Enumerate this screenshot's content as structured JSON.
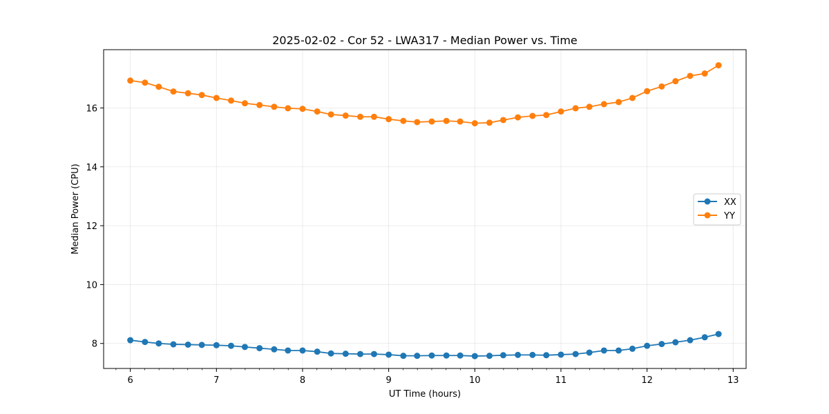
{
  "chart_data": {
    "type": "line",
    "title": "2025-02-02 - Cor 52 - LWA317 - Median Power vs. Time",
    "xlabel": "UT Time (hours)",
    "ylabel": "Median Power (CPU)",
    "xlim": [
      5.69,
      13.15
    ],
    "ylim": [
      7.15,
      17.98
    ],
    "xticks": [
      6,
      7,
      8,
      9,
      10,
      11,
      12,
      13
    ],
    "xtick_labels": [
      "6",
      "7",
      "8",
      "9",
      "10",
      "11",
      "12",
      "13"
    ],
    "yticks": [
      8,
      10,
      12,
      14,
      16
    ],
    "ytick_labels": [
      "8",
      "10",
      "12",
      "14",
      "16"
    ],
    "grid": true,
    "legend_position": "center-right",
    "x": [
      6.0,
      6.17,
      6.33,
      6.5,
      6.67,
      6.83,
      7.0,
      7.17,
      7.33,
      7.5,
      7.67,
      7.83,
      8.0,
      8.17,
      8.33,
      8.5,
      8.67,
      8.83,
      9.0,
      9.17,
      9.33,
      9.5,
      9.67,
      9.83,
      10.0,
      10.17,
      10.33,
      10.5,
      10.67,
      10.83,
      11.0,
      11.17,
      11.33,
      11.5,
      11.67,
      11.83,
      12.0,
      12.17,
      12.33,
      12.5,
      12.67,
      12.83
    ],
    "series": [
      {
        "name": "XX",
        "color": "#1f77b4",
        "values": [
          8.11,
          8.05,
          8.0,
          7.97,
          7.96,
          7.95,
          7.94,
          7.92,
          7.88,
          7.84,
          7.8,
          7.76,
          7.76,
          7.72,
          7.66,
          7.65,
          7.64,
          7.64,
          7.62,
          7.58,
          7.58,
          7.59,
          7.59,
          7.59,
          7.57,
          7.58,
          7.6,
          7.61,
          7.61,
          7.6,
          7.62,
          7.64,
          7.69,
          7.76,
          7.76,
          7.82,
          7.92,
          7.98,
          8.04,
          8.11,
          8.21,
          8.32
        ]
      },
      {
        "name": "YY",
        "color": "#ff7f0e",
        "values": [
          16.93,
          16.86,
          16.72,
          16.56,
          16.5,
          16.44,
          16.34,
          16.25,
          16.16,
          16.1,
          16.04,
          15.99,
          15.97,
          15.88,
          15.78,
          15.74,
          15.7,
          15.7,
          15.62,
          15.56,
          15.52,
          15.54,
          15.56,
          15.54,
          15.48,
          15.5,
          15.59,
          15.68,
          15.73,
          15.76,
          15.88,
          15.99,
          16.04,
          16.13,
          16.2,
          16.34,
          16.57,
          16.73,
          16.91,
          17.09,
          17.17,
          17.45
        ]
      }
    ]
  }
}
